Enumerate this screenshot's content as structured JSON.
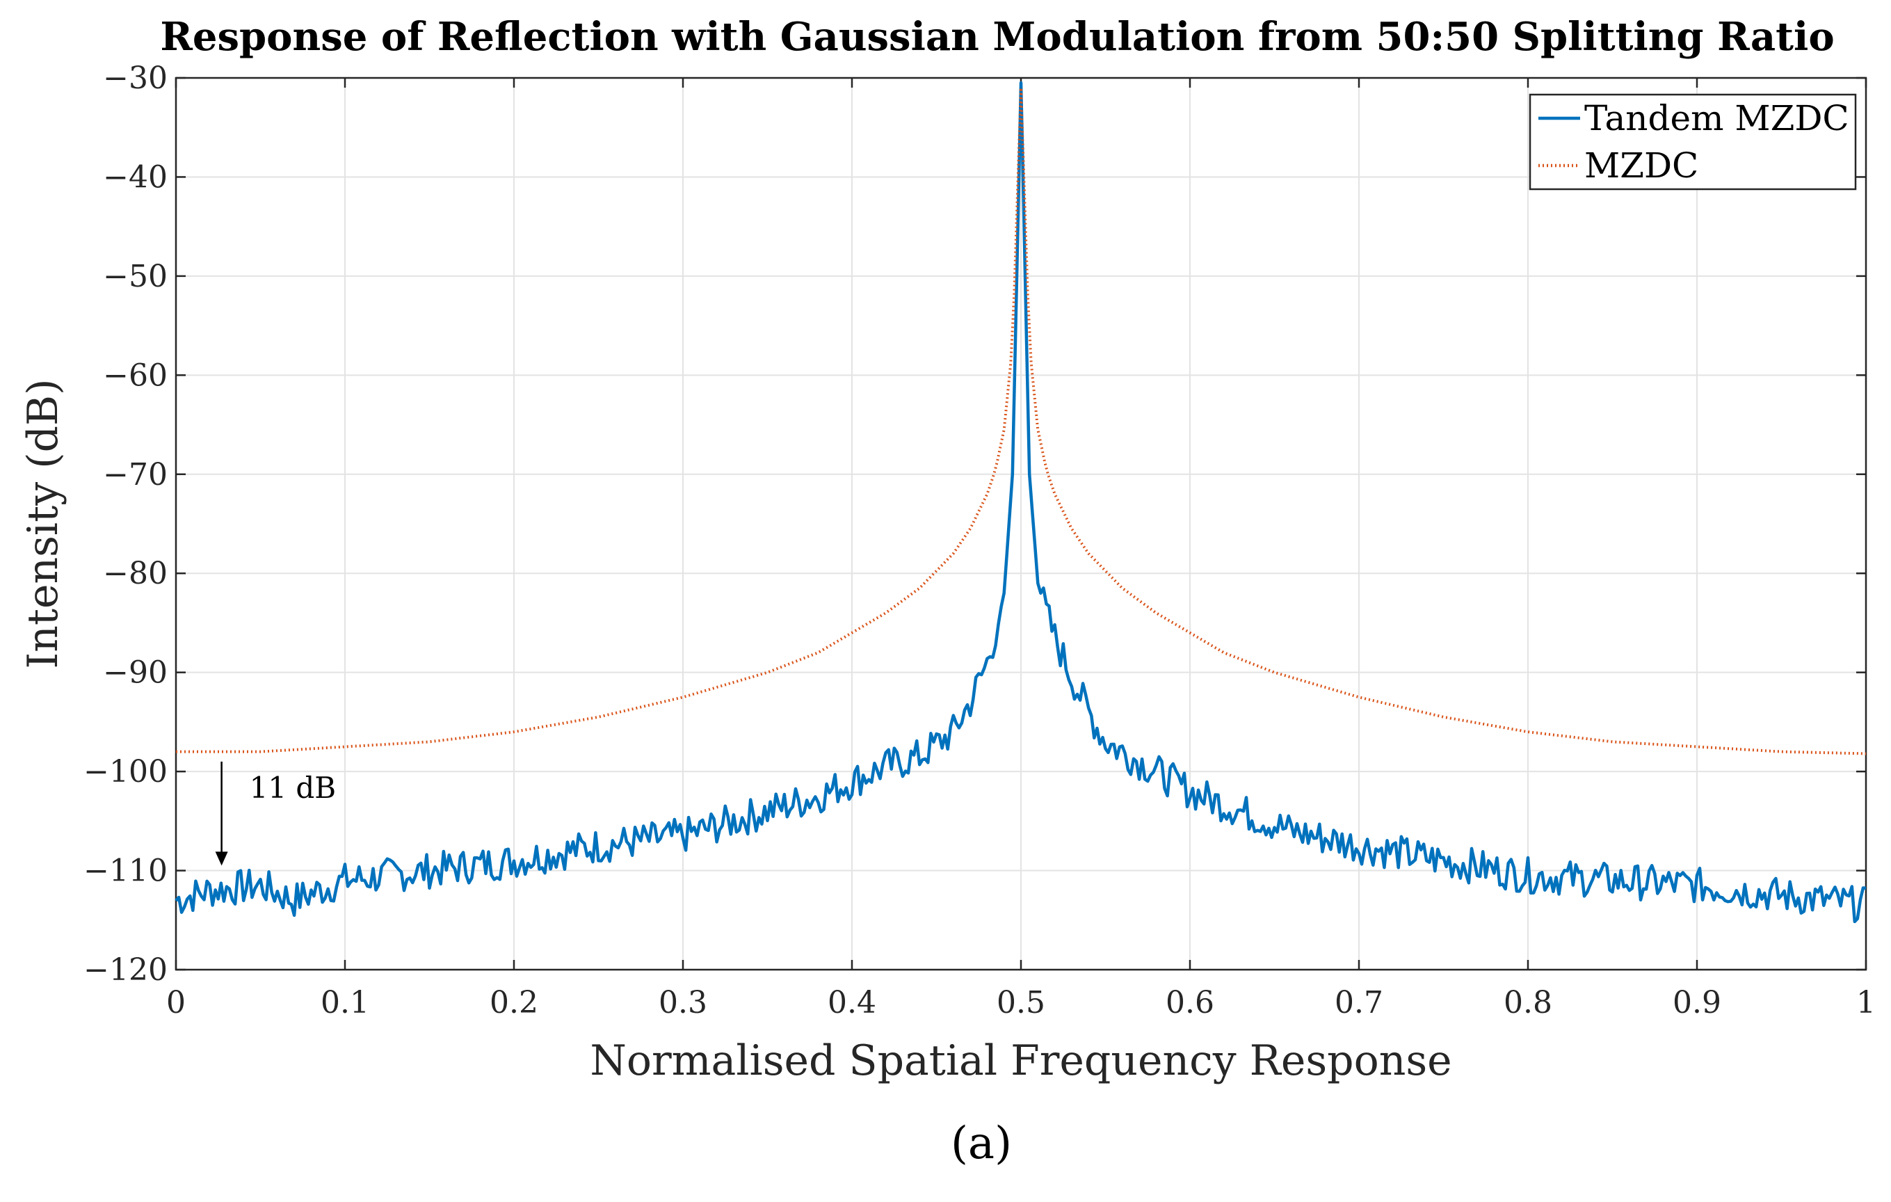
{
  "chart_data": {
    "type": "line",
    "title": "Response of Reflection with Gaussian Modulation from 50:50 Splitting Ratio",
    "xlabel": "Normalised Spatial Frequency Response",
    "ylabel": "Intensity (dB)",
    "caption": "(a)",
    "xlim": [
      0,
      1
    ],
    "ylim": [
      -120,
      -30
    ],
    "x_ticks": [
      0,
      0.1,
      0.2,
      0.3,
      0.4,
      0.5,
      0.6,
      0.7,
      0.8,
      0.9,
      1
    ],
    "x_tick_labels": [
      "0",
      "0.1",
      "0.2",
      "0.3",
      "0.4",
      "0.5",
      "0.6",
      "0.7",
      "0.8",
      "0.9",
      "1"
    ],
    "y_ticks": [
      -30,
      -40,
      -50,
      -60,
      -70,
      -80,
      -90,
      -100,
      -110,
      -120
    ],
    "y_tick_labels": [
      "−30",
      "−40",
      "−50",
      "−60",
      "−70",
      "−80",
      "−90",
      "−100",
      "−110",
      "−120"
    ],
    "grid": true,
    "legend_position": "top-right",
    "annotation": {
      "text": "11 dB",
      "x": 0.027,
      "y_from": -99,
      "y_to": -109.5
    },
    "series": [
      {
        "name": "Tandem MZDC",
        "style": "solid",
        "color": "#0072BD",
        "x": [
          0,
          0.02,
          0.05,
          0.07,
          0.1,
          0.15,
          0.2,
          0.25,
          0.3,
          0.33,
          0.35,
          0.38,
          0.4,
          0.42,
          0.44,
          0.46,
          0.47,
          0.48,
          0.485,
          0.49,
          0.495,
          0.5,
          0.505,
          0.51,
          0.515,
          0.52,
          0.53,
          0.54,
          0.55,
          0.57,
          0.6,
          0.63,
          0.66,
          0.7,
          0.75,
          0.8,
          0.85,
          0.9,
          0.95,
          1
        ],
        "values": [
          -113.0,
          -112.0,
          -111.5,
          -113.0,
          -111.0,
          -110.0,
          -109.0,
          -107.5,
          -106.5,
          -105.0,
          -104.0,
          -102.5,
          -101.0,
          -99.5,
          -98.5,
          -96.0,
          -93.0,
          -89.0,
          -86.0,
          -82.0,
          -70.0,
          -30.5,
          -70.0,
          -81.0,
          -84.0,
          -86.5,
          -90.5,
          -94.0,
          -97.0,
          -99.0,
          -102.0,
          -104.0,
          -106.0,
          -107.5,
          -109.0,
          -110.5,
          -111.0,
          -111.5,
          -112.5,
          -113.5
        ],
        "noise": 1.8
      },
      {
        "name": "MZDC",
        "style": "dotted",
        "color": "#D95319",
        "x": [
          0,
          0.05,
          0.1,
          0.15,
          0.2,
          0.25,
          0.3,
          0.35,
          0.38,
          0.4,
          0.42,
          0.44,
          0.46,
          0.47,
          0.48,
          0.485,
          0.49,
          0.495,
          0.5,
          0.505,
          0.51,
          0.515,
          0.52,
          0.53,
          0.54,
          0.56,
          0.58,
          0.6,
          0.62,
          0.65,
          0.7,
          0.75,
          0.8,
          0.85,
          0.9,
          0.95,
          1
        ],
        "values": [
          -98.0,
          -98.0,
          -97.5,
          -97.0,
          -96.0,
          -94.5,
          -92.5,
          -90.0,
          -88.0,
          -86.0,
          -84.0,
          -81.5,
          -78.0,
          -75.5,
          -72.0,
          -69.5,
          -65.5,
          -57.0,
          -31.0,
          -57.0,
          -65.5,
          -69.5,
          -72.0,
          -75.5,
          -78.0,
          -81.5,
          -84.0,
          -86.0,
          -88.0,
          -90.0,
          -92.5,
          -94.5,
          -96.0,
          -97.0,
          -97.5,
          -98.0,
          -98.2
        ]
      }
    ]
  }
}
